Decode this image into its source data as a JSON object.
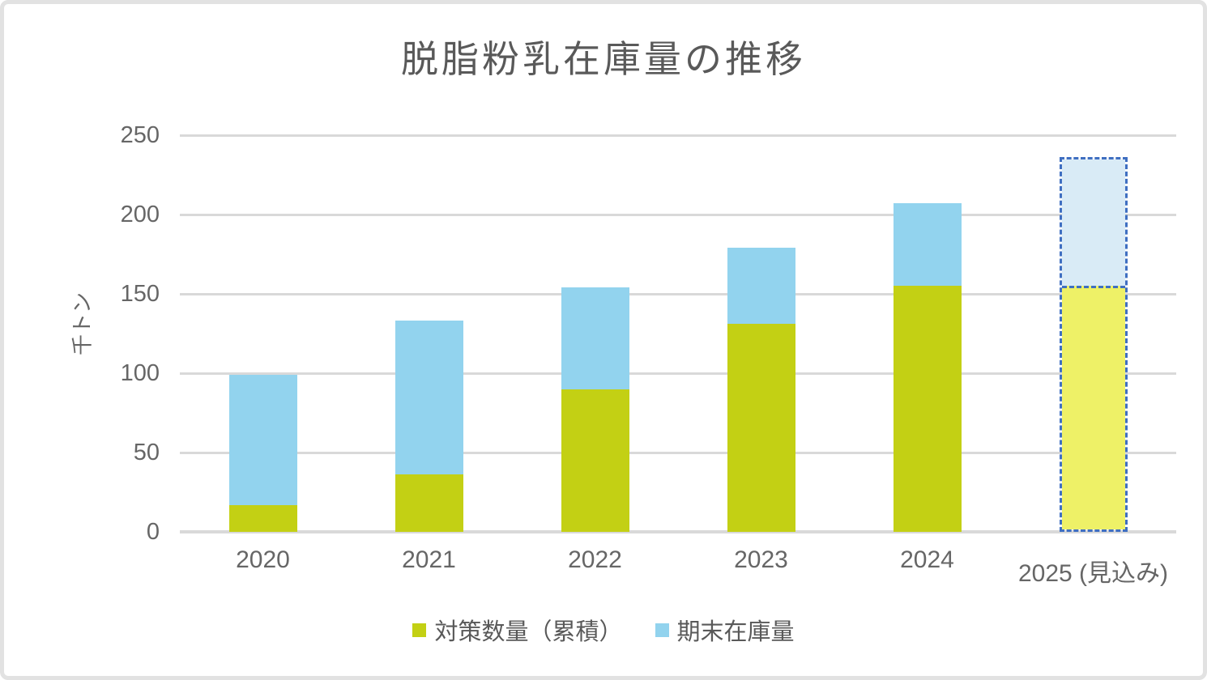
{
  "window": {
    "background": "#ffffff",
    "border_color": "#e2e2e2"
  },
  "chart_data": {
    "type": "bar",
    "stacked": true,
    "title": "脱脂粉乳在庫量の推移",
    "ylabel": "千トン",
    "xlabel": "",
    "ylim": [
      0,
      250
    ],
    "yticks": [
      0,
      50,
      100,
      150,
      200,
      250
    ],
    "categories": [
      "2020",
      "2021",
      "2022",
      "2023",
      "2024",
      "2025 (見込み)"
    ],
    "series": [
      {
        "name": "対策数量（累積）",
        "color": "#c3d014",
        "forecast_color": "#eef167",
        "values": [
          17,
          36,
          90,
          131,
          155,
          155
        ]
      },
      {
        "name": "期末在庫量",
        "color": "#92d3ee",
        "forecast_color": "#d9ebf6",
        "values": [
          82,
          97,
          64,
          48,
          52,
          81
        ]
      }
    ],
    "totals": [
      99,
      133,
      154,
      179,
      207,
      236
    ],
    "forecast_index": 5,
    "forecast_outline_color": "#3f6fc1",
    "grid": true,
    "gridline_color": "#d9d9d9",
    "text_color": "#595959",
    "legend_position": "bottom"
  }
}
